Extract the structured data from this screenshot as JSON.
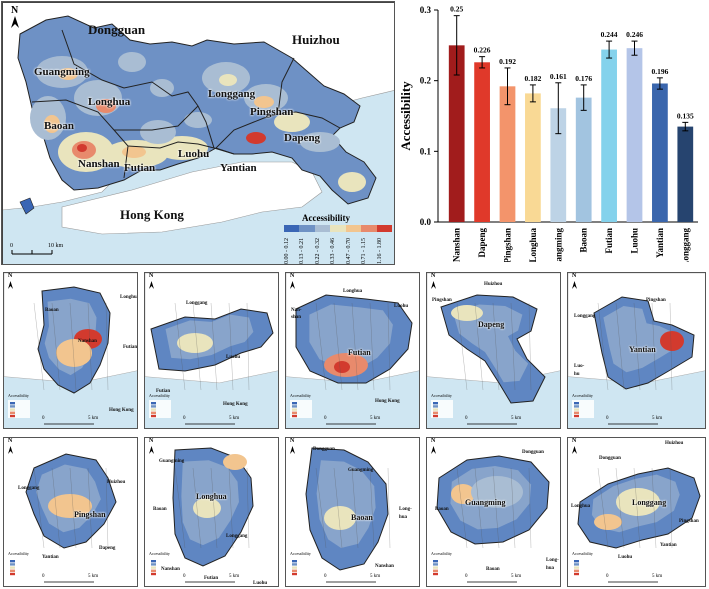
{
  "main_map": {
    "regions": [
      "Dongguan",
      "Huizhou",
      "Guangming",
      "Longhua",
      "Baoan",
      "Longgang",
      "Pingshan",
      "Dapeng",
      "Nanshan",
      "Futian",
      "Luohu",
      "Yantian",
      "Hong Kong"
    ],
    "legend_title": "Accessibility",
    "legend_items": [
      "0.00 - 0.12",
      "0.13 - 0.21",
      "0.22 - 0.32",
      "0.33 - 0.46",
      "0.47 - 0.70",
      "0.71 - 1.15",
      "1.16 - 1.80"
    ],
    "legend_colors": [
      "#3a66b5",
      "#6f92c4",
      "#a9bdd3",
      "#e9e4bd",
      "#f2c58f",
      "#e88a6c",
      "#d23a2e"
    ],
    "scale_start": "0",
    "scale_end": "10 km",
    "north": "N"
  },
  "chart_data": {
    "type": "bar",
    "categories": [
      "Nanshan",
      "Dapeng",
      "Pingshan",
      "Longhua",
      "Guangming",
      "Baoan",
      "Futian",
      "Luohu",
      "Yantian",
      "Longgang"
    ],
    "values": [
      0.25,
      0.226,
      0.192,
      0.182,
      0.161,
      0.176,
      0.244,
      0.246,
      0.196,
      0.135
    ],
    "value_labels": [
      "0.25",
      "0.226",
      "0.192",
      "0.182",
      "0.161",
      "0.176",
      "0.244",
      "0.246",
      "0.196",
      "0.135"
    ],
    "errors": [
      0.042,
      0.008,
      0.026,
      0.012,
      0.036,
      0.018,
      0.012,
      0.01,
      0.008,
      0.006
    ],
    "colors": [
      "#a11c1c",
      "#e0392a",
      "#f3946b",
      "#f9d995",
      "#bdd3e6",
      "#a2c4e0",
      "#84d2ec",
      "#b4c5e8",
      "#3a66ad",
      "#26446f"
    ],
    "ylabel": "Accessibility",
    "ylim": [
      0,
      0.3
    ],
    "yticks": [
      "0.0",
      "0.1",
      "0.2",
      "0.3"
    ],
    "ytick_values": [
      0,
      0.1,
      0.2,
      0.3
    ]
  },
  "district_maps": [
    {
      "name": "Nanshan",
      "labels": [
        "Baoan",
        "Longhua",
        "Nanshan",
        "Futian",
        "Hong Kong"
      ]
    },
    {
      "name": "Luohu",
      "labels": [
        "Longgang",
        "Luohu",
        "Futian",
        "Hong Kong"
      ]
    },
    {
      "name": "Futian",
      "labels": [
        "Longhua",
        "Luohu",
        "Nan-",
        "shan",
        "Futian",
        "Hong Kong"
      ]
    },
    {
      "name": "Dapeng",
      "labels": [
        "Huizhou",
        "Pingshan",
        "Dapeng"
      ]
    },
    {
      "name": "Yantian",
      "labels": [
        "Pingshan",
        "Longgang",
        "Yantian",
        "Luo-",
        "hu"
      ]
    },
    {
      "name": "Pingshan",
      "labels": [
        "Longgang",
        "Huizhou",
        "Pingshan",
        "Yantian",
        "Dapeng"
      ]
    },
    {
      "name": "Longhua",
      "labels": [
        "Guangming",
        "Longhua",
        "Baoan",
        "Longgang",
        "Nanshan",
        "Futian",
        "Luohu"
      ]
    },
    {
      "name": "Baoan",
      "labels": [
        "Dongguan",
        "Guangming",
        "Baoan",
        "Long-",
        "hua",
        "Nanshan"
      ]
    },
    {
      "name": "Guangming",
      "labels": [
        "Dongguan",
        "Guangming",
        "Baoan",
        "Long-",
        "hua",
        "Baoan"
      ]
    },
    {
      "name": "Longgang",
      "labels": [
        "Huizhou",
        "Dongguan",
        "Longhua",
        "Longgang",
        "Pingshan",
        "Yantian",
        "Luohu"
      ]
    }
  ],
  "small_map": {
    "north": "N",
    "scale_zero": "0",
    "scale_end": "5 km",
    "legend_hint": "Accessibility"
  }
}
